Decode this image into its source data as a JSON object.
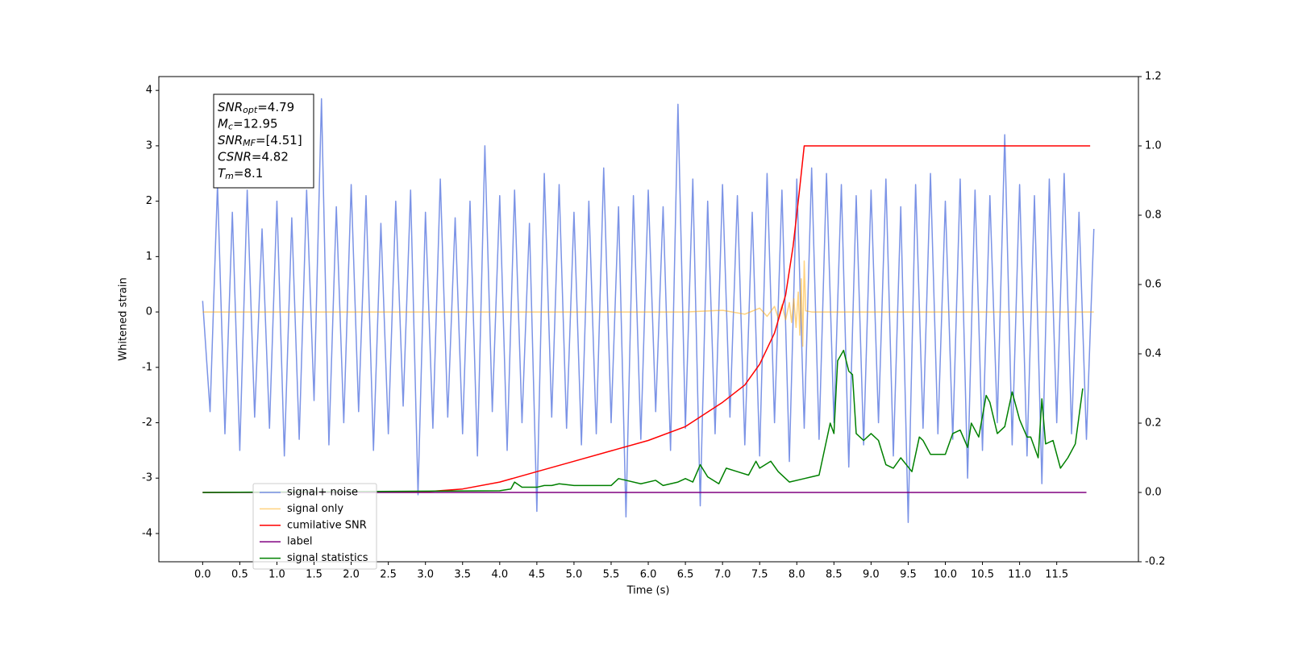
{
  "chart_data": {
    "type": "line",
    "xlabel": "Time (s)",
    "ylabel": "Whitened strain",
    "xlim": [
      -0.59,
      12.6
    ],
    "ylim": [
      -4.51,
      4.25
    ],
    "y2lim": [
      -0.2,
      1.2
    ],
    "xticks": [
      {
        "value": 0,
        "label": "0.0"
      },
      0.5,
      {
        "value": 1,
        "label": "1.0"
      },
      1.5,
      {
        "value": 2,
        "label": "2.0"
      },
      2.5,
      {
        "value": 3,
        "label": "3.0"
      },
      3.5,
      {
        "value": 4,
        "label": "4.0"
      },
      4.5,
      {
        "value": 5,
        "label": "5.0"
      },
      5.5,
      {
        "value": 6,
        "label": "6.0"
      },
      6.5,
      {
        "value": 7,
        "label": "7.0"
      },
      7.5,
      {
        "value": 8,
        "label": "8.0"
      },
      8.5,
      {
        "value": 9,
        "label": "9.0"
      },
      9.5,
      {
        "value": 10,
        "label": "10.0"
      },
      10.5,
      {
        "value": 11,
        "label": "11.0"
      },
      11.5
    ],
    "yticks": [
      -4,
      -3,
      -2,
      -1,
      0,
      1,
      2,
      3,
      4
    ],
    "y2ticks": [
      -0.2,
      {
        "value": 0,
        "label": "0.0"
      },
      0.2,
      0.4,
      0.6,
      0.8,
      {
        "value": 1,
        "label": "1.0"
      },
      1.2
    ],
    "legend": "lower left",
    "annotations": [
      {
        "name": "SNR",
        "sub": "opt",
        "text": "=4.79"
      },
      {
        "name": "M",
        "sub": "c",
        "text": "=12.95"
      },
      {
        "name": "SNR",
        "sub": "MF",
        "text": "=[4.51]"
      },
      {
        "name": "CSNR",
        "text": "=4.82"
      },
      {
        "name": "T",
        "sub": "m",
        "text": "=8.1"
      }
    ],
    "series": [
      {
        "name": "signal+ noise",
        "color": "#7b93e6",
        "x": [
          0,
          0.1,
          0.2,
          0.3,
          0.4,
          0.5,
          0.6,
          0.7,
          0.8,
          0.9,
          1,
          1.1,
          1.2,
          1.3,
          1.4,
          1.5,
          1.6,
          1.7,
          1.8,
          1.9,
          2,
          2.1,
          2.2,
          2.3,
          2.4,
          2.5,
          2.6,
          2.7,
          2.8,
          2.9,
          3,
          3.1,
          3.2,
          3.3,
          3.4,
          3.5,
          3.6,
          3.7,
          3.8,
          3.9,
          4,
          4.1,
          4.2,
          4.3,
          4.4,
          4.5,
          4.6,
          4.7,
          4.8,
          4.9,
          5,
          5.1,
          5.2,
          5.3,
          5.4,
          5.5,
          5.6,
          5.7,
          5.8,
          5.9,
          6,
          6.1,
          6.2,
          6.3,
          6.4,
          6.5,
          6.6,
          6.7,
          6.8,
          6.9,
          7,
          7.1,
          7.2,
          7.3,
          7.4,
          7.5,
          7.6,
          7.7,
          7.8,
          7.9,
          8,
          8.1,
          8.2,
          8.3,
          8.4,
          8.5,
          8.6,
          8.7,
          8.8,
          8.9,
          9,
          9.1,
          9.2,
          9.3,
          9.4,
          9.5,
          9.6,
          9.7,
          9.8,
          9.9,
          10,
          10.1,
          10.2,
          10.3,
          10.4,
          10.5,
          10.6,
          10.7,
          10.8,
          10.9,
          11,
          11.1,
          11.2,
          11.3,
          11.4,
          11.5,
          11.6,
          11.7,
          11.8,
          11.9,
          12
        ],
        "values": [
          0.2,
          -1.8,
          2.3,
          -2.2,
          1.8,
          -2.5,
          2.2,
          -1.9,
          1.5,
          -2.1,
          2.0,
          -2.6,
          1.7,
          -2.3,
          2.2,
          -1.6,
          3.85,
          -2.4,
          1.9,
          -2.0,
          2.3,
          -1.8,
          2.1,
          -2.5,
          1.6,
          -2.2,
          2.0,
          -1.7,
          2.2,
          -3.3,
          1.8,
          -2.1,
          2.4,
          -1.9,
          1.7,
          -2.2,
          2.0,
          -2.6,
          3.0,
          -1.8,
          2.1,
          -2.5,
          2.2,
          -2.0,
          1.6,
          -3.6,
          2.5,
          -1.9,
          2.3,
          -2.1,
          1.8,
          -2.4,
          2.0,
          -2.2,
          2.6,
          -2.0,
          1.9,
          -3.7,
          2.1,
          -2.3,
          2.2,
          -1.8,
          1.9,
          -2.5,
          3.75,
          -2.1,
          2.4,
          -3.5,
          2.0,
          -2.2,
          2.3,
          -1.9,
          2.1,
          -2.4,
          1.8,
          -2.6,
          2.5,
          -2.0,
          2.2,
          -2.7,
          2.4,
          -2.1,
          2.6,
          -2.3,
          2.5,
          -2.0,
          2.3,
          -2.8,
          2.1,
          -2.4,
          2.2,
          -2.0,
          2.4,
          -2.6,
          1.9,
          -3.8,
          2.3,
          -2.1,
          2.5,
          -2.2,
          2.0,
          -2.3,
          2.4,
          -3.0,
          2.2,
          -2.5,
          2.1,
          -2.0,
          3.2,
          -2.4,
          2.3,
          -2.6,
          2.1,
          -3.1,
          2.4,
          -2.0,
          2.5,
          -2.2,
          1.8,
          -2.3,
          1.5
        ]
      },
      {
        "name": "signal only",
        "color": "#ffa500",
        "opacity": 0.5,
        "x": [
          0,
          6.5,
          7.0,
          7.3,
          7.5,
          7.6,
          7.7,
          7.75,
          7.8,
          7.85,
          7.9,
          7.93,
          7.96,
          7.99,
          8.02,
          8.04,
          8.06,
          8.08,
          8.1,
          8.12,
          8.2,
          12
        ],
        "values": [
          0,
          0,
          0.03,
          -0.04,
          0.07,
          -0.08,
          0.1,
          -0.11,
          0.13,
          -0.14,
          0.17,
          -0.19,
          0.24,
          -0.28,
          0.36,
          -0.42,
          0.6,
          -0.62,
          0.92,
          0.02,
          0,
          0
        ]
      },
      {
        "name": "cumilative SNR",
        "color": "#ff0000",
        "axis": "y2",
        "x": [
          0,
          3,
          3.5,
          4,
          4.5,
          5,
          5.5,
          6,
          6.5,
          7,
          7.3,
          7.5,
          7.7,
          7.85,
          7.95,
          8.03,
          8.1,
          11.95
        ],
        "values": [
          0,
          0.002,
          0.01,
          0.03,
          0.06,
          0.09,
          0.12,
          0.15,
          0.19,
          0.26,
          0.31,
          0.37,
          0.46,
          0.57,
          0.71,
          0.86,
          1.0,
          1.0
        ]
      },
      {
        "name": "label",
        "color": "#800080",
        "axis": "y2",
        "x": [
          0,
          11.9
        ],
        "values": [
          0,
          0
        ]
      },
      {
        "name": "signal statistics",
        "color": "#008000",
        "axis": "y2",
        "x": [
          0,
          4.0,
          4.15,
          4.2,
          4.3,
          4.5,
          4.6,
          4.7,
          4.8,
          5.0,
          5.3,
          5.5,
          5.6,
          5.7,
          5.9,
          6.1,
          6.2,
          6.4,
          6.5,
          6.6,
          6.7,
          6.8,
          6.95,
          7.05,
          7.2,
          7.35,
          7.45,
          7.5,
          7.65,
          7.75,
          7.9,
          8.1,
          8.2,
          8.3,
          8.45,
          8.5,
          8.55,
          8.63,
          8.7,
          8.75,
          8.8,
          8.9,
          9.0,
          9.1,
          9.2,
          9.3,
          9.4,
          9.55,
          9.65,
          9.7,
          9.8,
          9.9,
          10.0,
          10.1,
          10.2,
          10.3,
          10.35,
          10.45,
          10.55,
          10.6,
          10.7,
          10.8,
          10.9,
          11.0,
          11.1,
          11.15,
          11.25,
          11.3,
          11.35,
          11.45,
          11.55,
          11.65,
          11.75,
          11.85
        ],
        "values": [
          0,
          0.005,
          0.01,
          0.03,
          0.015,
          0.015,
          0.02,
          0.02,
          0.025,
          0.02,
          0.02,
          0.02,
          0.04,
          0.035,
          0.025,
          0.035,
          0.02,
          0.03,
          0.04,
          0.03,
          0.08,
          0.045,
          0.025,
          0.07,
          0.06,
          0.05,
          0.09,
          0.07,
          0.09,
          0.06,
          0.03,
          0.04,
          0.045,
          0.05,
          0.2,
          0.17,
          0.38,
          0.41,
          0.35,
          0.34,
          0.17,
          0.15,
          0.17,
          0.15,
          0.08,
          0.07,
          0.1,
          0.06,
          0.16,
          0.15,
          0.11,
          0.11,
          0.11,
          0.17,
          0.18,
          0.13,
          0.2,
          0.16,
          0.28,
          0.26,
          0.17,
          0.19,
          0.29,
          0.21,
          0.16,
          0.16,
          0.1,
          0.27,
          0.14,
          0.15,
          0.07,
          0.1,
          0.14,
          0.3
        ]
      }
    ]
  }
}
